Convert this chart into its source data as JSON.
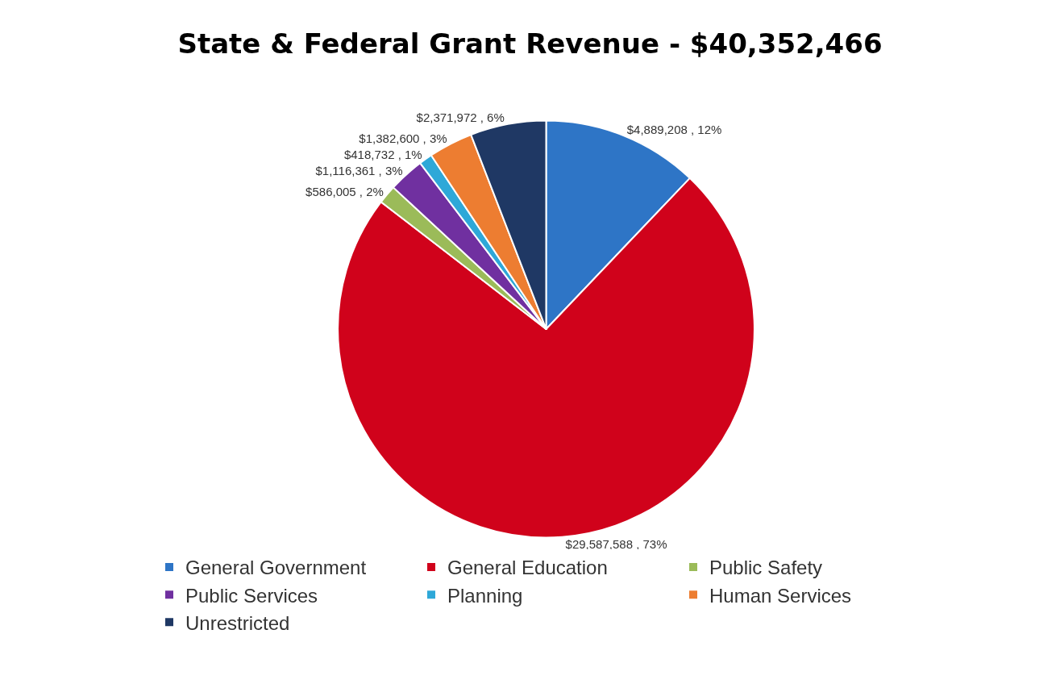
{
  "chart_data": {
    "type": "pie",
    "title": "State & Federal Grant Revenue - $40,352,466",
    "categories": [
      "General Government",
      "General Education",
      "Public Safety",
      "Public Services",
      "Planning",
      "Human Services",
      "Unrestricted"
    ],
    "values": [
      4889208,
      29587588,
      586005,
      1116361,
      418732,
      1382600,
      2371972
    ],
    "colors": [
      "#2e75c6",
      "#d0021b",
      "#9bbb59",
      "#7030a0",
      "#2ea8d8",
      "#ed7d31",
      "#1f3864"
    ],
    "value_labels": [
      "$4,889,208 , 12%",
      "$29,587,588 , 73%",
      "$586,005 , 2%",
      "$1,116,361 , 3%",
      "$418,732 , 1%",
      "$1,382,600 , 3%",
      "$2,371,972 , 6%"
    ],
    "legend": "bottom"
  }
}
